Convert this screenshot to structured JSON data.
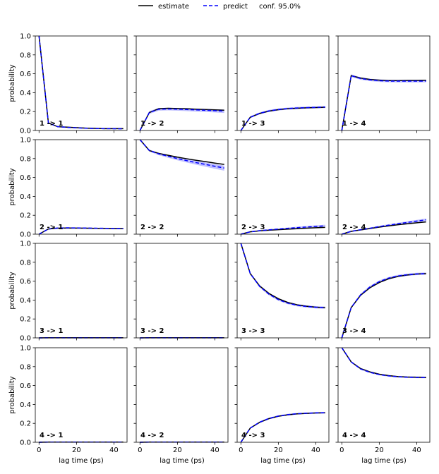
{
  "chart_data": {
    "type": "line",
    "grid_rows": 4,
    "grid_cols": 4,
    "legend": {
      "placement": "top-center",
      "entries": [
        {
          "label": "estimate",
          "color": "#000000",
          "style": "solid"
        },
        {
          "label": "predict",
          "color": "#0000ff",
          "style": "dashed"
        },
        {
          "label": "conf. 95.0%",
          "color": "#8080ff",
          "style": "band"
        }
      ]
    },
    "xlabel": "lag time (ps)",
    "ylabel": "probability",
    "xlim": [
      -2,
      47
    ],
    "ylim": [
      0,
      1.0
    ],
    "xticks": [
      0,
      20,
      40
    ],
    "yticks": [
      0.0,
      0.2,
      0.4,
      0.6,
      0.8,
      1.0
    ],
    "ytick_labels": [
      "0.0",
      "0.2",
      "0.4",
      "0.6",
      "0.8",
      "1.0"
    ],
    "colors": {
      "estimate": "#000000",
      "predict": "#0000ff",
      "band": "#8c8cff"
    },
    "lag_times": [
      0,
      5,
      10,
      15,
      20,
      25,
      30,
      35,
      40,
      45
    ],
    "panels": [
      {
        "label": "1 -> 1",
        "estimate": [
          1.0,
          0.08,
          0.04,
          0.035,
          0.03,
          0.025,
          0.022,
          0.02,
          0.02,
          0.02
        ],
        "predict": [
          1.0,
          0.08,
          0.04,
          0.033,
          0.028,
          0.024,
          0.021,
          0.02,
          0.019,
          0.018
        ],
        "band_low": [
          1.0,
          0.075,
          0.035,
          0.028,
          0.024,
          0.02,
          0.018,
          0.016,
          0.015,
          0.014
        ],
        "band_high": [
          1.0,
          0.085,
          0.045,
          0.038,
          0.032,
          0.028,
          0.025,
          0.023,
          0.022,
          0.021
        ]
      },
      {
        "label": "1 -> 2",
        "estimate": [
          0.0,
          0.19,
          0.23,
          0.235,
          0.232,
          0.23,
          0.225,
          0.222,
          0.218,
          0.215
        ],
        "predict": [
          0.0,
          0.19,
          0.225,
          0.228,
          0.226,
          0.222,
          0.218,
          0.214,
          0.21,
          0.206
        ],
        "band_low": [
          0.0,
          0.175,
          0.21,
          0.213,
          0.21,
          0.205,
          0.2,
          0.196,
          0.191,
          0.186
        ],
        "band_high": [
          0.0,
          0.205,
          0.238,
          0.24,
          0.238,
          0.235,
          0.232,
          0.228,
          0.225,
          0.222
        ]
      },
      {
        "label": "1 -> 3",
        "estimate": [
          0.0,
          0.14,
          0.18,
          0.205,
          0.22,
          0.23,
          0.235,
          0.24,
          0.243,
          0.245
        ],
        "predict": [
          0.0,
          0.14,
          0.182,
          0.207,
          0.222,
          0.232,
          0.238,
          0.242,
          0.245,
          0.248
        ],
        "band_low": [
          0.0,
          0.13,
          0.172,
          0.196,
          0.211,
          0.221,
          0.227,
          0.231,
          0.234,
          0.237
        ],
        "band_high": [
          0.0,
          0.15,
          0.192,
          0.218,
          0.233,
          0.243,
          0.249,
          0.253,
          0.256,
          0.259
        ]
      },
      {
        "label": "1 -> 4",
        "estimate": [
          0.0,
          0.58,
          0.555,
          0.54,
          0.533,
          0.528,
          0.528,
          0.53,
          0.53,
          0.532
        ],
        "predict": [
          0.0,
          0.58,
          0.55,
          0.535,
          0.527,
          0.523,
          0.522,
          0.522,
          0.522,
          0.523
        ],
        "band_low": [
          0.0,
          0.565,
          0.537,
          0.522,
          0.514,
          0.51,
          0.508,
          0.508,
          0.508,
          0.509
        ],
        "band_high": [
          0.0,
          0.595,
          0.563,
          0.548,
          0.54,
          0.536,
          0.535,
          0.535,
          0.536,
          0.537
        ]
      },
      {
        "label": "2 -> 1",
        "estimate": [
          0.0,
          0.055,
          0.063,
          0.065,
          0.064,
          0.063,
          0.062,
          0.061,
          0.06,
          0.059
        ],
        "predict": [
          0.0,
          0.055,
          0.065,
          0.067,
          0.066,
          0.065,
          0.063,
          0.062,
          0.06,
          0.059
        ],
        "band_low": [
          0.0,
          0.05,
          0.06,
          0.061,
          0.06,
          0.059,
          0.057,
          0.056,
          0.054,
          0.053
        ],
        "band_high": [
          0.0,
          0.06,
          0.07,
          0.072,
          0.071,
          0.07,
          0.069,
          0.068,
          0.066,
          0.065
        ]
      },
      {
        "label": "2 -> 2",
        "estimate": [
          1.0,
          0.885,
          0.855,
          0.835,
          0.815,
          0.798,
          0.782,
          0.768,
          0.752,
          0.738
        ],
        "predict": [
          1.0,
          0.885,
          0.85,
          0.825,
          0.8,
          0.778,
          0.757,
          0.738,
          0.718,
          0.7
        ],
        "band_low": [
          1.0,
          0.875,
          0.836,
          0.809,
          0.782,
          0.758,
          0.735,
          0.714,
          0.692,
          0.672
        ],
        "band_high": [
          1.0,
          0.895,
          0.862,
          0.839,
          0.816,
          0.796,
          0.777,
          0.759,
          0.742,
          0.726
        ]
      },
      {
        "label": "2 -> 3",
        "estimate": [
          0.0,
          0.025,
          0.035,
          0.042,
          0.048,
          0.053,
          0.058,
          0.063,
          0.068,
          0.072
        ],
        "predict": [
          0.0,
          0.025,
          0.037,
          0.046,
          0.054,
          0.062,
          0.069,
          0.076,
          0.082,
          0.088
        ],
        "band_low": [
          0.0,
          0.02,
          0.031,
          0.04,
          0.047,
          0.054,
          0.06,
          0.066,
          0.071,
          0.076
        ],
        "band_high": [
          0.0,
          0.03,
          0.043,
          0.053,
          0.062,
          0.07,
          0.078,
          0.086,
          0.093,
          0.1
        ]
      },
      {
        "label": "2 -> 4",
        "estimate": [
          0.0,
          0.03,
          0.045,
          0.06,
          0.075,
          0.088,
          0.1,
          0.11,
          0.12,
          0.13
        ],
        "predict": [
          0.0,
          0.03,
          0.047,
          0.063,
          0.08,
          0.095,
          0.11,
          0.124,
          0.138,
          0.152
        ],
        "band_low": [
          0.0,
          0.026,
          0.041,
          0.056,
          0.071,
          0.085,
          0.099,
          0.112,
          0.125,
          0.138
        ],
        "band_high": [
          0.0,
          0.034,
          0.053,
          0.07,
          0.089,
          0.105,
          0.121,
          0.136,
          0.151,
          0.166
        ]
      },
      {
        "label": "3 -> 1",
        "estimate": [
          0.0,
          0.001,
          0.001,
          0.001,
          0.001,
          0.001,
          0.001,
          0.001,
          0.001,
          0.001
        ],
        "predict": [
          0.0,
          0.001,
          0.001,
          0.001,
          0.001,
          0.001,
          0.001,
          0.001,
          0.001,
          0.001
        ],
        "band_low": [
          0.0,
          0.0,
          0.0,
          0.0,
          0.0,
          0.0,
          0.0,
          0.0,
          0.0,
          0.0
        ],
        "band_high": [
          0.0,
          0.003,
          0.003,
          0.003,
          0.003,
          0.003,
          0.003,
          0.003,
          0.003,
          0.003
        ]
      },
      {
        "label": "3 -> 2",
        "estimate": [
          0.0,
          0.001,
          0.001,
          0.001,
          0.001,
          0.001,
          0.001,
          0.001,
          0.001,
          0.001
        ],
        "predict": [
          0.0,
          0.001,
          0.001,
          0.001,
          0.001,
          0.001,
          0.001,
          0.001,
          0.001,
          0.001
        ],
        "band_low": [
          0.0,
          0.0,
          0.0,
          0.0,
          0.0,
          0.0,
          0.0,
          0.0,
          0.0,
          0.0
        ],
        "band_high": [
          0.0,
          0.003,
          0.003,
          0.003,
          0.003,
          0.003,
          0.003,
          0.003,
          0.003,
          0.003
        ]
      },
      {
        "label": "3 -> 3",
        "estimate": [
          1.0,
          0.68,
          0.55,
          0.47,
          0.415,
          0.375,
          0.35,
          0.335,
          0.325,
          0.32
        ],
        "predict": [
          1.0,
          0.68,
          0.545,
          0.462,
          0.405,
          0.368,
          0.345,
          0.332,
          0.324,
          0.32
        ],
        "band_low": [
          1.0,
          0.67,
          0.533,
          0.45,
          0.393,
          0.356,
          0.333,
          0.32,
          0.312,
          0.308
        ],
        "band_high": [
          1.0,
          0.69,
          0.557,
          0.474,
          0.417,
          0.38,
          0.357,
          0.344,
          0.336,
          0.332
        ]
      },
      {
        "label": "3 -> 4",
        "estimate": [
          0.0,
          0.32,
          0.45,
          0.53,
          0.585,
          0.625,
          0.65,
          0.665,
          0.675,
          0.68
        ],
        "predict": [
          0.0,
          0.32,
          0.455,
          0.538,
          0.595,
          0.632,
          0.655,
          0.668,
          0.676,
          0.68
        ],
        "band_low": [
          0.0,
          0.31,
          0.443,
          0.526,
          0.583,
          0.62,
          0.643,
          0.656,
          0.664,
          0.668
        ],
        "band_high": [
          0.0,
          0.33,
          0.467,
          0.55,
          0.607,
          0.644,
          0.667,
          0.68,
          0.688,
          0.692
        ]
      },
      {
        "label": "4 -> 1",
        "estimate": [
          0.0,
          0.002,
          0.002,
          0.002,
          0.002,
          0.002,
          0.002,
          0.002,
          0.002,
          0.002
        ],
        "predict": [
          0.0,
          0.002,
          0.002,
          0.002,
          0.002,
          0.002,
          0.002,
          0.002,
          0.002,
          0.002
        ],
        "band_low": [
          0.0,
          0.0,
          0.0,
          0.0,
          0.0,
          0.0,
          0.0,
          0.0,
          0.0,
          0.0
        ],
        "band_high": [
          0.0,
          0.004,
          0.004,
          0.004,
          0.004,
          0.004,
          0.004,
          0.004,
          0.004,
          0.004
        ]
      },
      {
        "label": "4 -> 2",
        "estimate": [
          0.0,
          0.002,
          0.002,
          0.002,
          0.002,
          0.002,
          0.002,
          0.002,
          0.002,
          0.002
        ],
        "predict": [
          0.0,
          0.002,
          0.002,
          0.002,
          0.002,
          0.002,
          0.002,
          0.002,
          0.002,
          0.002
        ],
        "band_low": [
          0.0,
          0.0,
          0.0,
          0.0,
          0.0,
          0.0,
          0.0,
          0.0,
          0.0,
          0.0
        ],
        "band_high": [
          0.0,
          0.004,
          0.004,
          0.004,
          0.004,
          0.004,
          0.004,
          0.004,
          0.004,
          0.004
        ]
      },
      {
        "label": "4 -> 3",
        "estimate": [
          0.0,
          0.15,
          0.21,
          0.25,
          0.275,
          0.29,
          0.3,
          0.305,
          0.31,
          0.312
        ],
        "predict": [
          0.0,
          0.15,
          0.212,
          0.252,
          0.277,
          0.292,
          0.302,
          0.307,
          0.311,
          0.313
        ],
        "band_low": [
          0.0,
          0.143,
          0.204,
          0.244,
          0.269,
          0.284,
          0.294,
          0.299,
          0.303,
          0.305
        ],
        "band_high": [
          0.0,
          0.157,
          0.22,
          0.26,
          0.285,
          0.3,
          0.31,
          0.315,
          0.319,
          0.321
        ]
      },
      {
        "label": "4 -> 4",
        "estimate": [
          1.0,
          0.85,
          0.78,
          0.745,
          0.72,
          0.705,
          0.695,
          0.69,
          0.688,
          0.685
        ],
        "predict": [
          1.0,
          0.85,
          0.776,
          0.74,
          0.716,
          0.702,
          0.693,
          0.688,
          0.686,
          0.685
        ],
        "band_low": [
          1.0,
          0.843,
          0.768,
          0.732,
          0.708,
          0.694,
          0.685,
          0.68,
          0.678,
          0.677
        ],
        "band_high": [
          1.0,
          0.857,
          0.784,
          0.748,
          0.724,
          0.71,
          0.701,
          0.696,
          0.694,
          0.693
        ]
      }
    ]
  }
}
